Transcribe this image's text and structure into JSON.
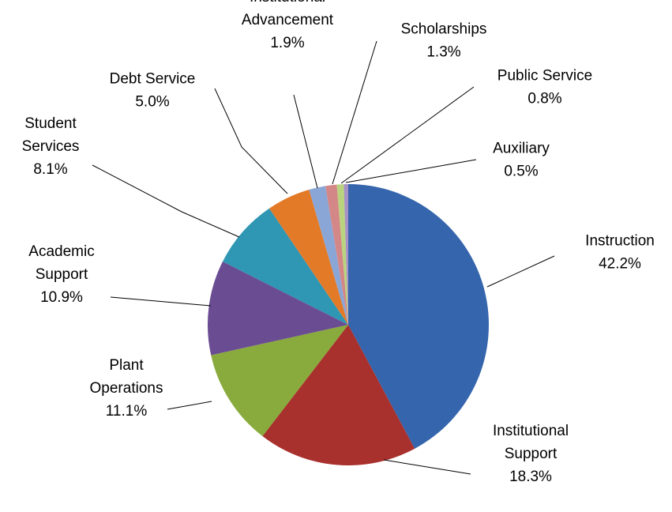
{
  "chart_data": {
    "type": "pie",
    "title": "",
    "start_angle_deg": 0,
    "direction": "clockwise",
    "legend": "none",
    "series": [
      {
        "values": [
          {
            "category": "Instruction",
            "label_lines": [
              "Instruction"
            ],
            "value": 42.2,
            "value_label": "42.2%",
            "color": "#3565ac"
          },
          {
            "category": "Institutional Support",
            "label_lines": [
              "Institutional",
              "Support"
            ],
            "value": 18.3,
            "value_label": "18.3%",
            "color": "#a8302d"
          },
          {
            "category": "Plant Operations",
            "label_lines": [
              "Plant",
              "Operations"
            ],
            "value": 11.1,
            "value_label": "11.1%",
            "color": "#89aa3c"
          },
          {
            "category": "Academic Support",
            "label_lines": [
              "Academic",
              "Support"
            ],
            "value": 10.9,
            "value_label": "10.9%",
            "color": "#6a4c93"
          },
          {
            "category": "Student Services",
            "label_lines": [
              "Student",
              "Services"
            ],
            "value": 8.1,
            "value_label": "8.1%",
            "color": "#2f96b4"
          },
          {
            "category": "Debt Service",
            "label_lines": [
              "Debt Service"
            ],
            "value": 5.0,
            "value_label": "5.0%",
            "color": "#e37a28"
          },
          {
            "category": "Institutional Advancement",
            "label_lines": [
              "Institutional",
              "Advancement"
            ],
            "value": 1.9,
            "value_label": "1.9%",
            "color": "#8aa6d6"
          },
          {
            "category": "Scholarships",
            "label_lines": [
              "Scholarships"
            ],
            "value": 1.3,
            "value_label": "1.3%",
            "color": "#d48787"
          },
          {
            "category": "Public Service",
            "label_lines": [
              "Public Service"
            ],
            "value": 0.8,
            "value_label": "0.8%",
            "color": "#b9d37e"
          },
          {
            "category": "Auxiliary",
            "label_lines": [
              "Auxiliary"
            ],
            "value": 0.5,
            "value_label": "0.5%",
            "color": "#a692c6"
          }
        ]
      }
    ]
  }
}
